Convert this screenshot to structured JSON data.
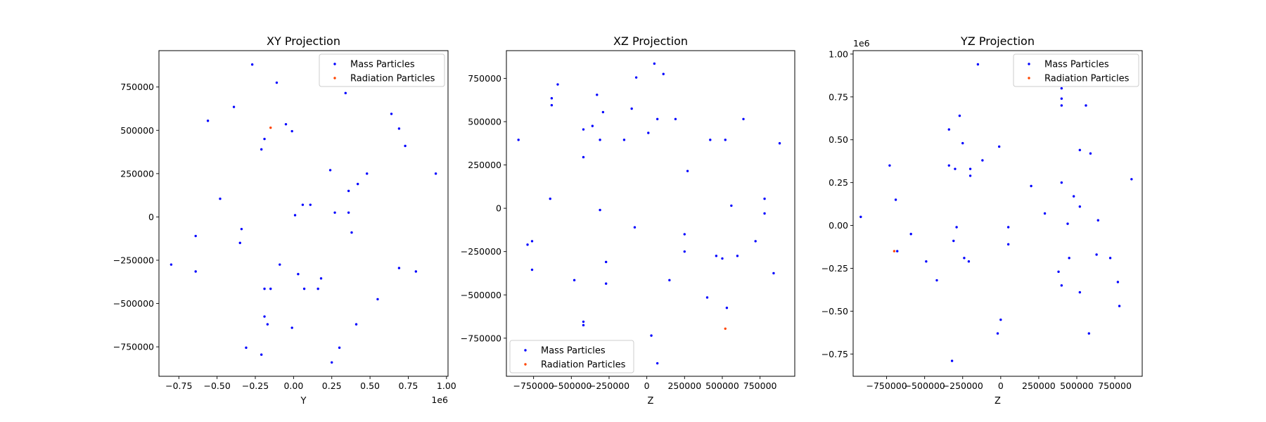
{
  "chart_data": [
    {
      "type": "scatter",
      "title": "XY Projection",
      "xlabel": "Y",
      "ylabel": "",
      "x_offset_label": "1e6",
      "y_offset_label": "",
      "xlim": [
        -880000,
        1010000
      ],
      "ylim": [
        -920000,
        960000
      ],
      "xticks": [
        -750000,
        -500000,
        -250000,
        0,
        250000,
        500000,
        750000,
        1000000
      ],
      "xtick_labels": [
        "−0.75",
        "−0.50",
        "−0.25",
        "0.00",
        "0.25",
        "0.50",
        "0.75",
        "1.00"
      ],
      "yticks": [
        -750000,
        -500000,
        -250000,
        0,
        250000,
        500000,
        750000
      ],
      "ytick_labels": [
        "−750000",
        "−500000",
        "−250000",
        "0",
        "250000",
        "500000",
        "750000"
      ],
      "legend": {
        "placement": "top-right",
        "entries": [
          "Mass Particles",
          "Radiation Particles"
        ]
      },
      "series": [
        {
          "name": "Mass Particles",
          "color": "#0000ff",
          "points": [
            [
              -270000,
              880000
            ],
            [
              -110000,
              775000
            ],
            [
              -390000,
              635000
            ],
            [
              -560000,
              555000
            ],
            [
              -50000,
              535000
            ],
            [
              -10000,
              495000
            ],
            [
              -190000,
              450000
            ],
            [
              -210000,
              390000
            ],
            [
              340000,
              715000
            ],
            [
              640000,
              595000
            ],
            [
              690000,
              510000
            ],
            [
              730000,
              410000
            ],
            [
              930000,
              250000
            ],
            [
              480000,
              250000
            ],
            [
              240000,
              270000
            ],
            [
              420000,
              190000
            ],
            [
              360000,
              150000
            ],
            [
              -480000,
              105000
            ],
            [
              60000,
              70000
            ],
            [
              110000,
              70000
            ],
            [
              270000,
              25000
            ],
            [
              360000,
              25000
            ],
            [
              10000,
              10000
            ],
            [
              -340000,
              -70000
            ],
            [
              380000,
              -90000
            ],
            [
              -640000,
              -110000
            ],
            [
              -350000,
              -150000
            ],
            [
              -800000,
              -275000
            ],
            [
              -640000,
              -315000
            ],
            [
              -90000,
              -275000
            ],
            [
              30000,
              -330000
            ],
            [
              690000,
              -295000
            ],
            [
              800000,
              -315000
            ],
            [
              180000,
              -355000
            ],
            [
              -190000,
              -415000
            ],
            [
              -150000,
              -415000
            ],
            [
              70000,
              -415000
            ],
            [
              160000,
              -415000
            ],
            [
              550000,
              -475000
            ],
            [
              -190000,
              -575000
            ],
            [
              -170000,
              -620000
            ],
            [
              -10000,
              -640000
            ],
            [
              410000,
              -620000
            ],
            [
              -310000,
              -755000
            ],
            [
              300000,
              -755000
            ],
            [
              -210000,
              -795000
            ],
            [
              250000,
              -840000
            ]
          ]
        },
        {
          "name": "Radiation Particles",
          "color": "#ff4500",
          "points": [
            [
              -150000,
              515000
            ]
          ]
        }
      ]
    },
    {
      "type": "scatter",
      "title": "XZ Projection",
      "xlabel": "Z",
      "ylabel": "",
      "x_offset_label": "",
      "y_offset_label": "",
      "xlim": [
        -930000,
        980000
      ],
      "ylim": [
        -970000,
        910000
      ],
      "xticks": [
        -750000,
        -500000,
        -250000,
        0,
        250000,
        500000,
        750000
      ],
      "xtick_labels": [
        "−750000",
        "−500000",
        "−250000",
        "0",
        "250000",
        "500000",
        "750000"
      ],
      "yticks": [
        -750000,
        -500000,
        -250000,
        0,
        250000,
        500000,
        750000
      ],
      "ytick_labels": [
        "−750000",
        "−500000",
        "−250000",
        "0",
        "250000",
        "500000",
        "750000"
      ],
      "legend": {
        "placement": "bottom-left",
        "entries": [
          "Mass Particles",
          "Radiation Particles"
        ]
      },
      "series": [
        {
          "name": "Mass Particles",
          "color": "#0000ff",
          "points": [
            [
              50000,
              835000
            ],
            [
              -70000,
              755000
            ],
            [
              110000,
              775000
            ],
            [
              -590000,
              715000
            ],
            [
              -630000,
              635000
            ],
            [
              -630000,
              595000
            ],
            [
              -330000,
              655000
            ],
            [
              -100000,
              575000
            ],
            [
              -290000,
              555000
            ],
            [
              -360000,
              475000
            ],
            [
              -420000,
              455000
            ],
            [
              70000,
              515000
            ],
            [
              190000,
              515000
            ],
            [
              640000,
              515000
            ],
            [
              10000,
              435000
            ],
            [
              -150000,
              395000
            ],
            [
              -310000,
              395000
            ],
            [
              420000,
              395000
            ],
            [
              520000,
              395000
            ],
            [
              880000,
              375000
            ],
            [
              -850000,
              395000
            ],
            [
              -420000,
              295000
            ],
            [
              270000,
              215000
            ],
            [
              -640000,
              55000
            ],
            [
              780000,
              55000
            ],
            [
              560000,
              15000
            ],
            [
              -310000,
              -10000
            ],
            [
              780000,
              -30000
            ],
            [
              -80000,
              -110000
            ],
            [
              250000,
              -150000
            ],
            [
              720000,
              -190000
            ],
            [
              -760000,
              -190000
            ],
            [
              -790000,
              -210000
            ],
            [
              250000,
              -250000
            ],
            [
              460000,
              -275000
            ],
            [
              500000,
              -290000
            ],
            [
              600000,
              -275000
            ],
            [
              -270000,
              -310000
            ],
            [
              -760000,
              -355000
            ],
            [
              840000,
              -375000
            ],
            [
              -480000,
              -415000
            ],
            [
              150000,
              -415000
            ],
            [
              -270000,
              -435000
            ],
            [
              400000,
              -515000
            ],
            [
              530000,
              -575000
            ],
            [
              -420000,
              -655000
            ],
            [
              -420000,
              -675000
            ],
            [
              30000,
              -735000
            ],
            [
              70000,
              -895000
            ]
          ]
        },
        {
          "name": "Radiation Particles",
          "color": "#ff4500",
          "points": [
            [
              520000,
              -695000
            ]
          ]
        }
      ]
    },
    {
      "type": "scatter",
      "title": "YZ Projection",
      "xlabel": "Z",
      "ylabel": "",
      "x_offset_label": "",
      "y_offset_label": "1e6",
      "xlim": [
        -970000,
        930000
      ],
      "ylim": [
        -0.88,
        1.02
      ],
      "xticks": [
        -750000,
        -500000,
        -250000,
        0,
        250000,
        500000,
        750000
      ],
      "xtick_labels": [
        "−750000",
        "−500000",
        "−250000",
        "0",
        "250000",
        "500000",
        "750000"
      ],
      "yticks": [
        -0.75,
        -0.5,
        -0.25,
        0,
        0.25,
        0.5,
        0.75,
        1.0
      ],
      "ytick_labels": [
        "−0.75",
        "−0.50",
        "−0.25",
        "0.00",
        "0.25",
        "0.50",
        "0.75",
        "1.00"
      ],
      "legend": {
        "placement": "top-right",
        "entries": [
          "Mass Particles",
          "Radiation Particles"
        ]
      },
      "series": [
        {
          "name": "Mass Particles",
          "color": "#0000ff",
          "points": [
            [
              -150000,
              0.94
            ],
            [
              400000,
              0.8
            ],
            [
              400000,
              0.74
            ],
            [
              400000,
              0.7
            ],
            [
              560000,
              0.7
            ],
            [
              -270000,
              0.64
            ],
            [
              -340000,
              0.56
            ],
            [
              -250000,
              0.48
            ],
            [
              -10000,
              0.46
            ],
            [
              520000,
              0.44
            ],
            [
              590000,
              0.42
            ],
            [
              -120000,
              0.38
            ],
            [
              -730000,
              0.35
            ],
            [
              -340000,
              0.35
            ],
            [
              -300000,
              0.33
            ],
            [
              -200000,
              0.33
            ],
            [
              -200000,
              0.29
            ],
            [
              860000,
              0.27
            ],
            [
              400000,
              0.25
            ],
            [
              200000,
              0.23
            ],
            [
              480000,
              0.17
            ],
            [
              -690000,
              0.15
            ],
            [
              520000,
              0.11
            ],
            [
              290000,
              0.07
            ],
            [
              -920000,
              0.05
            ],
            [
              640000,
              0.03
            ],
            [
              440000,
              0.01
            ],
            [
              -290000,
              -0.01
            ],
            [
              50000,
              -0.01
            ],
            [
              -590000,
              -0.05
            ],
            [
              -310000,
              -0.09
            ],
            [
              50000,
              -0.11
            ],
            [
              -680000,
              -0.15
            ],
            [
              -240000,
              -0.19
            ],
            [
              450000,
              -0.19
            ],
            [
              630000,
              -0.17
            ],
            [
              720000,
              -0.19
            ],
            [
              -210000,
              -0.21
            ],
            [
              -490000,
              -0.21
            ],
            [
              380000,
              -0.27
            ],
            [
              -420000,
              -0.32
            ],
            [
              770000,
              -0.33
            ],
            [
              400000,
              -0.35
            ],
            [
              520000,
              -0.39
            ],
            [
              780000,
              -0.47
            ],
            [
              0,
              -0.55
            ],
            [
              -20000,
              -0.63
            ],
            [
              580000,
              -0.63
            ],
            [
              -320000,
              -0.79
            ]
          ]
        },
        {
          "name": "Radiation Particles",
          "color": "#ff4500",
          "points": [
            [
              -700000,
              -0.15
            ]
          ]
        }
      ]
    }
  ]
}
